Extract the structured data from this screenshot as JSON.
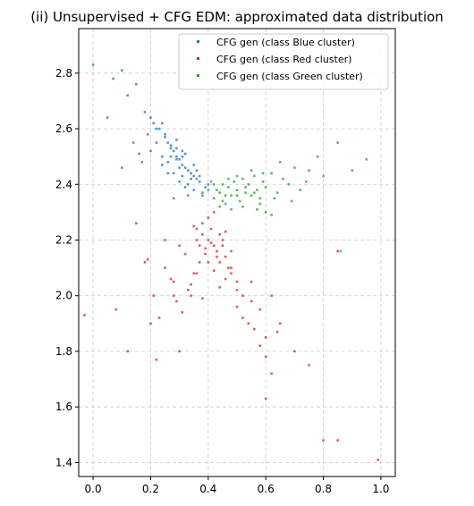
{
  "chart_data": {
    "type": "scatter",
    "title": "(ii) Unsupervised + CFG EDM: approximated data distribution",
    "xlabel": "",
    "ylabel": "",
    "xlim": [
      -0.05,
      1.05
    ],
    "ylim": [
      1.35,
      2.96
    ],
    "xticks": [
      0.0,
      0.2,
      0.4,
      0.6,
      0.8,
      1.0
    ],
    "xtick_labels": [
      "0.0",
      "0.2",
      "0.4",
      "0.6",
      "0.8",
      "1.0"
    ],
    "yticks": [
      1.4,
      1.6,
      1.8,
      2.0,
      2.2,
      2.4,
      2.6,
      2.8
    ],
    "ytick_labels": [
      "1.4",
      "1.6",
      "1.8",
      "2.0",
      "2.2",
      "2.4",
      "2.6",
      "2.8"
    ],
    "grid": true,
    "legend_position": "top-right",
    "series": [
      {
        "name": "CFG gen (class Blue cluster)",
        "color": "#1f77b4",
        "x": [
          0.0,
          0.07,
          0.1,
          0.12,
          0.15,
          0.18,
          0.2,
          0.22,
          0.24,
          0.25,
          0.26,
          0.27,
          0.28,
          0.29,
          0.3,
          0.31,
          0.32,
          0.33,
          0.34,
          0.35,
          0.36,
          0.37,
          0.22,
          0.19,
          0.29,
          0.31,
          0.26,
          0.33,
          0.28,
          0.24,
          0.35,
          0.38,
          0.3,
          0.27,
          0.34,
          0.32,
          0.29,
          0.36,
          0.25,
          0.31,
          0.23,
          0.21,
          0.17,
          0.14,
          0.28,
          0.3,
          0.33,
          0.26,
          0.39,
          0.4,
          0.35,
          0.37,
          0.32,
          0.29,
          0.27,
          0.31,
          0.24,
          0.2,
          0.1,
          0.05,
          0.16
        ],
        "y": [
          2.83,
          2.78,
          2.81,
          2.72,
          2.76,
          2.66,
          2.64,
          2.6,
          2.62,
          2.57,
          2.55,
          2.53,
          2.52,
          2.5,
          2.49,
          2.47,
          2.46,
          2.45,
          2.44,
          2.43,
          2.42,
          2.41,
          2.55,
          2.58,
          2.56,
          2.5,
          2.48,
          2.4,
          2.44,
          2.47,
          2.38,
          2.37,
          2.46,
          2.5,
          2.42,
          2.39,
          2.53,
          2.45,
          2.58,
          2.52,
          2.6,
          2.62,
          2.48,
          2.55,
          2.35,
          2.41,
          2.36,
          2.44,
          2.39,
          2.4,
          2.47,
          2.43,
          2.51,
          2.49,
          2.54,
          2.43,
          2.5,
          2.52,
          2.46,
          2.64,
          2.51
        ]
      },
      {
        "name": "CFG gen (class Red cluster)",
        "color": "#d62728",
        "x": [
          -0.03,
          0.08,
          0.12,
          0.15,
          0.18,
          0.2,
          0.22,
          0.25,
          0.28,
          0.3,
          0.32,
          0.34,
          0.35,
          0.36,
          0.37,
          0.38,
          0.39,
          0.4,
          0.41,
          0.42,
          0.43,
          0.44,
          0.45,
          0.46,
          0.47,
          0.48,
          0.5,
          0.52,
          0.55,
          0.58,
          0.6,
          0.62,
          0.65,
          0.7,
          0.75,
          0.8,
          0.85,
          0.99,
          0.4,
          0.38,
          0.42,
          0.36,
          0.44,
          0.41,
          0.39,
          0.43,
          0.37,
          0.45,
          0.35,
          0.46,
          0.34,
          0.48,
          0.33,
          0.5,
          0.31,
          0.52,
          0.29,
          0.54,
          0.27,
          0.56,
          0.25,
          0.58,
          0.23,
          0.6,
          0.21,
          0.62,
          0.19,
          0.64,
          0.4,
          0.42,
          0.44,
          0.38,
          0.36,
          0.46,
          0.48,
          0.5,
          0.3,
          0.28,
          0.55,
          0.6,
          0.85
        ],
        "y": [
          1.93,
          1.95,
          1.8,
          2.26,
          2.12,
          1.9,
          1.77,
          2.2,
          2.05,
          1.8,
          2.15,
          2.0,
          2.25,
          2.2,
          2.18,
          2.22,
          2.15,
          2.2,
          2.24,
          2.18,
          2.16,
          2.12,
          2.2,
          2.14,
          2.1,
          2.08,
          2.05,
          2.0,
          1.98,
          1.95,
          1.85,
          2.0,
          1.9,
          1.8,
          1.75,
          1.48,
          1.48,
          1.41,
          2.28,
          2.26,
          2.3,
          2.24,
          2.22,
          2.19,
          2.17,
          2.14,
          2.12,
          2.18,
          2.08,
          2.06,
          2.04,
          2.1,
          2.02,
          1.96,
          1.94,
          1.92,
          1.98,
          1.9,
          2.06,
          1.88,
          2.1,
          1.82,
          1.92,
          1.78,
          2.0,
          1.72,
          2.13,
          1.87,
          2.12,
          2.09,
          2.03,
          1.99,
          2.08,
          2.23,
          2.16,
          2.02,
          2.18,
          2.0,
          2.05,
          1.63,
          2.16
        ]
      },
      {
        "name": "CFG gen (class Green cluster)",
        "color": "#2ca02c",
        "x": [
          0.38,
          0.4,
          0.42,
          0.44,
          0.45,
          0.46,
          0.47,
          0.48,
          0.49,
          0.5,
          0.51,
          0.52,
          0.53,
          0.54,
          0.55,
          0.56,
          0.57,
          0.58,
          0.59,
          0.6,
          0.62,
          0.64,
          0.66,
          0.68,
          0.7,
          0.72,
          0.75,
          0.78,
          0.8,
          0.85,
          0.9,
          0.95,
          0.42,
          0.45,
          0.48,
          0.5,
          0.52,
          0.55,
          0.58,
          0.6,
          0.63,
          0.47,
          0.53,
          0.57,
          0.41,
          0.44,
          0.62,
          0.65,
          0.5,
          0.56,
          0.59,
          0.46,
          0.43,
          0.69,
          0.74,
          0.86
        ],
        "y": [
          2.36,
          2.38,
          2.35,
          2.37,
          2.4,
          2.33,
          2.39,
          2.36,
          2.41,
          2.38,
          2.34,
          2.42,
          2.37,
          2.4,
          2.36,
          2.43,
          2.38,
          2.35,
          2.41,
          2.39,
          2.44,
          2.37,
          2.42,
          2.4,
          2.46,
          2.38,
          2.45,
          2.5,
          2.43,
          2.55,
          2.45,
          2.49,
          2.4,
          2.34,
          2.31,
          2.43,
          2.32,
          2.45,
          2.33,
          2.3,
          2.35,
          2.42,
          2.39,
          2.31,
          2.41,
          2.32,
          2.29,
          2.48,
          2.36,
          2.37,
          2.44,
          2.36,
          2.38,
          2.34,
          2.41,
          2.16
        ]
      }
    ]
  }
}
